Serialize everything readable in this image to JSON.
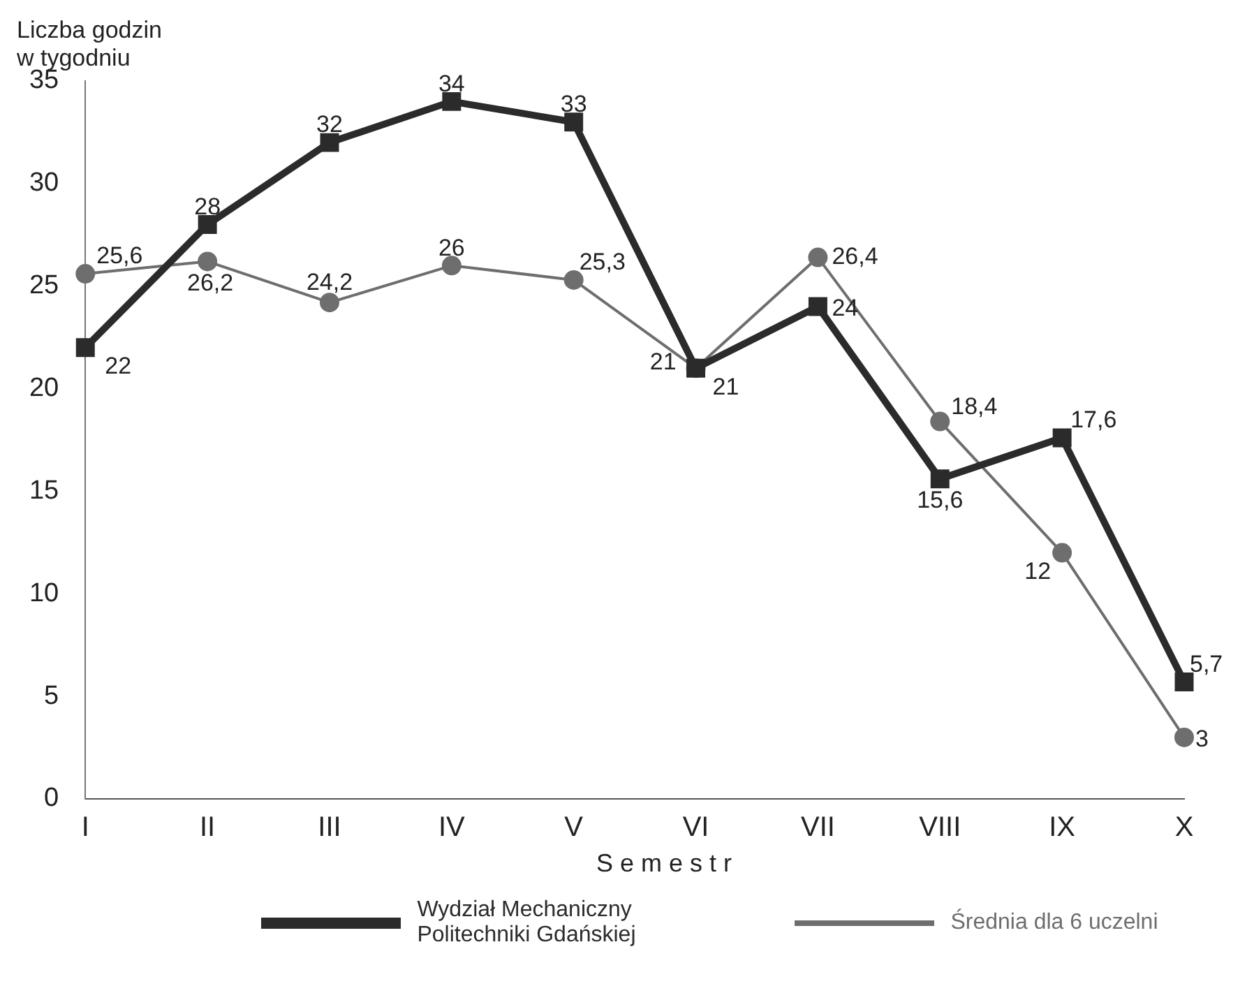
{
  "chart_data": {
    "type": "line",
    "xlabel": "Semestr",
    "ylabel": "Liczba godzin w tygodniu",
    "categories": [
      "I",
      "II",
      "III",
      "IV",
      "V",
      "VI",
      "VII",
      "VIII",
      "IX",
      "X"
    ],
    "series": [
      {
        "name": "Wydział Mechaniczny Politechniki Gdańskiej",
        "color": "#2b2b2b",
        "marker": "square",
        "values": [
          22,
          28,
          32,
          34,
          33,
          21,
          24,
          15.6,
          17.6,
          5.7
        ],
        "value_labels": [
          "22",
          "28",
          "32",
          "34",
          "33",
          "21",
          "24",
          "15,6",
          "17,6",
          "5,7"
        ]
      },
      {
        "name": "Średnia dla 6 uczelni",
        "color": "#6e6e6e",
        "marker": "circle",
        "values": [
          25.6,
          26.2,
          24.2,
          26,
          25.3,
          21,
          26.4,
          18.4,
          12,
          3
        ],
        "value_labels": [
          "25,6",
          "26,2",
          "24,2",
          "26",
          "25,3",
          "21",
          "26,4",
          "18,4",
          "12",
          "3"
        ]
      }
    ],
    "ylim": [
      0,
      35
    ],
    "yticks": [
      0,
      5,
      10,
      15,
      20,
      25,
      30,
      35
    ],
    "grid": false,
    "legend": "bottom",
    "line_style": "solid"
  }
}
